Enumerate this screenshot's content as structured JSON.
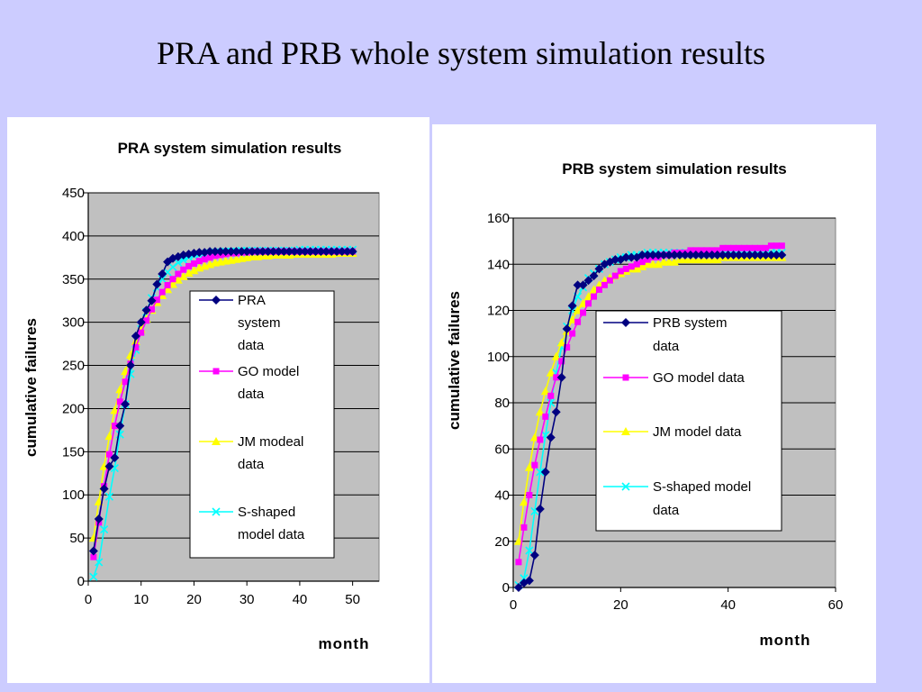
{
  "slide": {
    "title": "PRA and PRB whole system simulation results"
  },
  "colors": {
    "background": "#ccccff",
    "plot_area": "#c0c0c0",
    "PRA": "#000080",
    "GO": "#ff00ff",
    "JM": "#ffff00",
    "S": "#00ffff"
  },
  "chart_data": [
    {
      "type": "line",
      "title": "PRA system simulation results",
      "xlabel": "month",
      "ylabel": "cumulative failures",
      "xlim": [
        0,
        55
      ],
      "ylim": [
        0,
        450
      ],
      "xticks": [
        0,
        10,
        20,
        30,
        40,
        50
      ],
      "yticks": [
        0,
        50,
        100,
        150,
        200,
        250,
        300,
        350,
        400,
        450
      ],
      "grid": "horizontal",
      "legend_position": "right",
      "series": [
        {
          "name": "PRA system data",
          "color": "#000080",
          "marker": "diamond",
          "x": [
            1,
            2,
            3,
            4,
            5,
            6,
            7,
            8,
            9,
            10,
            11,
            12,
            13,
            14,
            15,
            16,
            17,
            18,
            19,
            20,
            21,
            22,
            23,
            24,
            25,
            26,
            27,
            28,
            29,
            30,
            31,
            32,
            33,
            34,
            35,
            36,
            37,
            38,
            39,
            40,
            41,
            42,
            43,
            44,
            45,
            46,
            47,
            48,
            49,
            50
          ],
          "y": [
            35,
            72,
            107,
            133,
            143,
            180,
            205,
            250,
            284,
            300,
            314,
            325,
            344,
            356,
            370,
            374,
            376,
            378,
            379,
            380,
            381,
            381,
            382,
            382,
            382,
            382,
            382,
            382,
            382,
            382,
            382,
            382,
            382,
            382,
            382,
            382,
            382,
            382,
            382,
            382,
            382,
            382,
            382,
            382,
            382,
            382,
            382,
            382,
            382,
            382
          ]
        },
        {
          "name": "GO model data",
          "color": "#ff00ff",
          "marker": "square",
          "x": [
            1,
            2,
            3,
            4,
            5,
            6,
            7,
            8,
            9,
            10,
            11,
            12,
            13,
            14,
            15,
            16,
            17,
            18,
            19,
            20,
            21,
            22,
            23,
            24,
            25,
            26,
            27,
            28,
            29,
            30,
            31,
            32,
            33,
            34,
            35,
            36,
            37,
            38,
            39,
            40,
            41,
            42,
            43,
            44,
            45,
            46,
            47,
            48,
            49,
            50
          ],
          "y": [
            28,
            68,
            110,
            147,
            180,
            208,
            231,
            252,
            271,
            288,
            302,
            315,
            326,
            335,
            343,
            350,
            356,
            361,
            365,
            368,
            371,
            373,
            375,
            377,
            378,
            379,
            380,
            380,
            381,
            381,
            382,
            382,
            382,
            382,
            382,
            382,
            382,
            382,
            382,
            382,
            382,
            382,
            382,
            382,
            382,
            382,
            382,
            382,
            382,
            382
          ]
        },
        {
          "name": "JM modeal data",
          "color": "#ffff00",
          "marker": "triangle",
          "x": [
            1,
            2,
            3,
            4,
            5,
            6,
            7,
            8,
            9,
            10,
            11,
            12,
            13,
            14,
            15,
            16,
            17,
            18,
            19,
            20,
            21,
            22,
            23,
            24,
            25,
            26,
            27,
            28,
            29,
            30,
            31,
            32,
            33,
            34,
            35,
            36,
            37,
            38,
            39,
            40,
            41,
            42,
            43,
            44,
            45,
            46,
            47,
            48,
            49,
            50
          ],
          "y": [
            50,
            92,
            133,
            168,
            198,
            222,
            243,
            262,
            278,
            292,
            304,
            314,
            323,
            331,
            338,
            344,
            349,
            353,
            357,
            360,
            363,
            365,
            367,
            369,
            370,
            371,
            372,
            373,
            374,
            375,
            376,
            376,
            377,
            377,
            378,
            378,
            378,
            378,
            379,
            379,
            379,
            379,
            379,
            379,
            379,
            379,
            380,
            380,
            380,
            380
          ]
        },
        {
          "name": "S-shaped model data",
          "color": "#00ffff",
          "marker": "x",
          "x": [
            1,
            2,
            3,
            4,
            5,
            6,
            7,
            8,
            9,
            10,
            11,
            12,
            13,
            14,
            15,
            16,
            17,
            18,
            19,
            20,
            21,
            22,
            23,
            24,
            25,
            26,
            27,
            28,
            29,
            30,
            31,
            32,
            33,
            34,
            35,
            36,
            37,
            38,
            39,
            40,
            41,
            42,
            43,
            44,
            45,
            46,
            47,
            48,
            49,
            50
          ],
          "y": [
            5,
            22,
            60,
            98,
            131,
            170,
            205,
            240,
            268,
            292,
            312,
            328,
            340,
            350,
            358,
            364,
            369,
            372,
            375,
            377,
            378,
            379,
            380,
            381,
            381,
            382,
            382,
            382,
            383,
            383,
            383,
            383,
            383,
            383,
            383,
            383,
            383,
            383,
            383,
            384,
            384,
            384,
            384,
            384,
            384,
            384,
            384,
            384,
            384,
            384
          ]
        }
      ]
    },
    {
      "type": "line",
      "title": "PRB system simulation results",
      "xlabel": "month",
      "ylabel": "cumulative failures",
      "xlim": [
        0,
        60
      ],
      "ylim": [
        0,
        160
      ],
      "xticks": [
        0,
        20,
        40,
        60
      ],
      "yticks": [
        0,
        20,
        40,
        60,
        80,
        100,
        120,
        140,
        160
      ],
      "grid": "horizontal",
      "legend_position": "right",
      "series": [
        {
          "name": "PRB system data",
          "color": "#000080",
          "marker": "diamond",
          "x": [
            1,
            2,
            3,
            4,
            5,
            6,
            7,
            8,
            9,
            10,
            11,
            12,
            13,
            14,
            15,
            16,
            17,
            18,
            19,
            20,
            21,
            22,
            23,
            24,
            25,
            26,
            27,
            28,
            29,
            30,
            31,
            32,
            33,
            34,
            35,
            36,
            37,
            38,
            39,
            40,
            41,
            42,
            43,
            44,
            45,
            46,
            47,
            48,
            49,
            50
          ],
          "y": [
            0,
            2,
            3,
            14,
            34,
            50,
            65,
            76,
            91,
            112,
            122,
            131,
            131,
            133,
            135,
            138,
            140,
            141,
            142,
            142,
            143,
            143,
            143,
            144,
            144,
            144,
            144,
            144,
            144,
            144,
            144,
            144,
            144,
            144,
            144,
            144,
            144,
            144,
            144,
            144,
            144,
            144,
            144,
            144,
            144,
            144,
            144,
            144,
            144,
            144
          ]
        },
        {
          "name": " GO model  data",
          "color": "#ff00ff",
          "marker": "square",
          "x": [
            1,
            2,
            3,
            4,
            5,
            6,
            7,
            8,
            9,
            10,
            11,
            12,
            13,
            14,
            15,
            16,
            17,
            18,
            19,
            20,
            21,
            22,
            23,
            24,
            25,
            26,
            27,
            28,
            29,
            30,
            31,
            32,
            33,
            34,
            35,
            36,
            37,
            38,
            39,
            40,
            41,
            42,
            43,
            44,
            45,
            46,
            47,
            48,
            49,
            50
          ],
          "y": [
            11,
            26,
            40,
            53,
            64,
            74,
            83,
            91,
            98,
            104,
            110,
            115,
            119,
            123,
            126,
            129,
            131,
            133,
            135,
            137,
            138,
            139,
            140,
            141,
            142,
            143,
            143,
            144,
            144,
            145,
            145,
            145,
            146,
            146,
            146,
            146,
            146,
            146,
            147,
            147,
            147,
            147,
            147,
            147,
            147,
            147,
            147,
            148,
            148,
            148
          ]
        },
        {
          "name": "JM model data",
          "color": "#ffff00",
          "marker": "triangle",
          "x": [
            1,
            2,
            3,
            4,
            5,
            6,
            7,
            8,
            9,
            10,
            11,
            12,
            13,
            14,
            15,
            16,
            17,
            18,
            19,
            20,
            21,
            22,
            23,
            24,
            25,
            26,
            27,
            28,
            29,
            30,
            31,
            32,
            33,
            34,
            35,
            36,
            37,
            38,
            39,
            40,
            41,
            42,
            43,
            44,
            45,
            46,
            47,
            48,
            49,
            50
          ],
          "y": [
            20,
            37,
            52,
            65,
            76,
            85,
            93,
            100,
            106,
            111,
            116,
            120,
            123,
            126,
            129,
            131,
            133,
            134,
            135,
            136,
            137,
            138,
            138,
            139,
            140,
            140,
            140,
            141,
            141,
            141,
            142,
            142,
            142,
            142,
            142,
            142,
            142,
            142,
            143,
            143,
            143,
            143,
            143,
            143,
            143,
            143,
            143,
            143,
            143,
            143
          ]
        },
        {
          "name": "S-shaped model data",
          "color": "#00ffff",
          "marker": "x",
          "x": [
            1,
            2,
            3,
            4,
            5,
            6,
            7,
            8,
            9,
            10,
            11,
            12,
            13,
            14,
            15,
            16,
            17,
            18,
            19,
            20,
            21,
            22,
            23,
            24,
            25,
            26,
            27,
            28,
            29,
            30,
            31,
            32,
            33,
            34,
            35,
            36,
            37,
            38,
            39,
            40,
            41,
            42,
            43,
            44,
            45,
            46,
            47,
            48,
            49,
            50
          ],
          "y": [
            1,
            4,
            16,
            33,
            50,
            66,
            80,
            93,
            104,
            113,
            120,
            126,
            130,
            134,
            136,
            138,
            140,
            141,
            142,
            143,
            143,
            144,
            144,
            144,
            145,
            145,
            145,
            145,
            145,
            145,
            145,
            145,
            145,
            145,
            145,
            145,
            145,
            145,
            145,
            145,
            145,
            145,
            145,
            145,
            145,
            145,
            145,
            145,
            145,
            145
          ]
        }
      ]
    }
  ]
}
